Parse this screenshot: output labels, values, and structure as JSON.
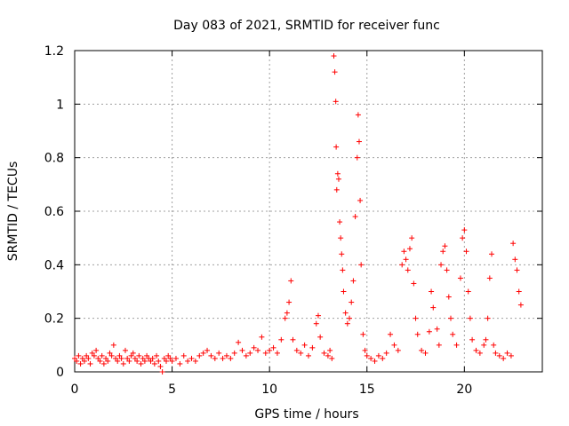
{
  "chart_data": {
    "type": "scatter",
    "title": "Day 083 of 2021, SRMTID for receiver func",
    "xlabel": "GPS time / hours",
    "ylabel": "SRMTID / TECUs",
    "xlim": [
      0,
      24
    ],
    "ylim": [
      0,
      1.2
    ],
    "xticks": [
      0,
      5,
      10,
      15,
      20
    ],
    "xtick_labels": [
      "0",
      "5",
      "10",
      "15",
      "20"
    ],
    "yticks": [
      0,
      0.2,
      0.4,
      0.6,
      0.8,
      1.0,
      1.2
    ],
    "ytick_labels": [
      "0",
      "0.2",
      "0.4",
      "0.6",
      "0.8",
      "1",
      "1.2"
    ],
    "grid": true,
    "marker": "+",
    "color": "#ff0000",
    "series": [
      {
        "name": "SRMTID",
        "points": [
          [
            0.0,
            0.05
          ],
          [
            0.1,
            0.04
          ],
          [
            0.2,
            0.06
          ],
          [
            0.3,
            0.03
          ],
          [
            0.4,
            0.05
          ],
          [
            0.5,
            0.04
          ],
          [
            0.6,
            0.06
          ],
          [
            0.7,
            0.05
          ],
          [
            0.8,
            0.03
          ],
          [
            0.9,
            0.07
          ],
          [
            1.0,
            0.06
          ],
          [
            1.1,
            0.08
          ],
          [
            1.2,
            0.05
          ],
          [
            1.3,
            0.04
          ],
          [
            1.4,
            0.06
          ],
          [
            1.5,
            0.03
          ],
          [
            1.6,
            0.05
          ],
          [
            1.7,
            0.04
          ],
          [
            1.8,
            0.07
          ],
          [
            1.9,
            0.06
          ],
          [
            2.0,
            0.1
          ],
          [
            2.1,
            0.05
          ],
          [
            2.2,
            0.04
          ],
          [
            2.3,
            0.06
          ],
          [
            2.4,
            0.05
          ],
          [
            2.5,
            0.03
          ],
          [
            2.6,
            0.08
          ],
          [
            2.7,
            0.05
          ],
          [
            2.8,
            0.04
          ],
          [
            2.9,
            0.06
          ],
          [
            3.0,
            0.07
          ],
          [
            3.1,
            0.05
          ],
          [
            3.2,
            0.04
          ],
          [
            3.3,
            0.06
          ],
          [
            3.4,
            0.03
          ],
          [
            3.5,
            0.05
          ],
          [
            3.6,
            0.04
          ],
          [
            3.7,
            0.06
          ],
          [
            3.8,
            0.05
          ],
          [
            3.9,
            0.04
          ],
          [
            4.0,
            0.05
          ],
          [
            4.1,
            0.03
          ],
          [
            4.2,
            0.06
          ],
          [
            4.3,
            0.04
          ],
          [
            4.4,
            0.02
          ],
          [
            4.5,
            0.0
          ],
          [
            4.6,
            0.05
          ],
          [
            4.7,
            0.04
          ],
          [
            4.8,
            0.06
          ],
          [
            4.9,
            0.05
          ],
          [
            5.0,
            0.04
          ],
          [
            5.2,
            0.05
          ],
          [
            5.4,
            0.03
          ],
          [
            5.6,
            0.06
          ],
          [
            5.8,
            0.04
          ],
          [
            6.0,
            0.05
          ],
          [
            6.2,
            0.04
          ],
          [
            6.4,
            0.06
          ],
          [
            6.6,
            0.07
          ],
          [
            6.8,
            0.08
          ],
          [
            7.0,
            0.06
          ],
          [
            7.2,
            0.05
          ],
          [
            7.4,
            0.07
          ],
          [
            7.6,
            0.05
          ],
          [
            7.8,
            0.06
          ],
          [
            8.0,
            0.05
          ],
          [
            8.2,
            0.07
          ],
          [
            8.4,
            0.11
          ],
          [
            8.6,
            0.08
          ],
          [
            8.8,
            0.06
          ],
          [
            9.0,
            0.07
          ],
          [
            9.2,
            0.09
          ],
          [
            9.4,
            0.08
          ],
          [
            9.6,
            0.13
          ],
          [
            9.8,
            0.07
          ],
          [
            10.0,
            0.08
          ],
          [
            10.2,
            0.09
          ],
          [
            10.4,
            0.07
          ],
          [
            10.6,
            0.12
          ],
          [
            10.8,
            0.2
          ],
          [
            10.9,
            0.22
          ],
          [
            11.0,
            0.26
          ],
          [
            11.1,
            0.34
          ],
          [
            11.2,
            0.12
          ],
          [
            11.4,
            0.08
          ],
          [
            11.6,
            0.07
          ],
          [
            11.8,
            0.1
          ],
          [
            12.0,
            0.06
          ],
          [
            12.2,
            0.09
          ],
          [
            12.4,
            0.18
          ],
          [
            12.5,
            0.21
          ],
          [
            12.6,
            0.13
          ],
          [
            12.8,
            0.07
          ],
          [
            13.0,
            0.06
          ],
          [
            13.1,
            0.08
          ],
          [
            13.2,
            0.05
          ],
          [
            13.3,
            1.18
          ],
          [
            13.35,
            1.12
          ],
          [
            13.4,
            1.01
          ],
          [
            13.42,
            0.84
          ],
          [
            13.45,
            0.68
          ],
          [
            13.5,
            0.74
          ],
          [
            13.55,
            0.72
          ],
          [
            13.6,
            0.56
          ],
          [
            13.65,
            0.5
          ],
          [
            13.7,
            0.44
          ],
          [
            13.75,
            0.38
          ],
          [
            13.8,
            0.3
          ],
          [
            13.9,
            0.22
          ],
          [
            14.0,
            0.18
          ],
          [
            14.1,
            0.2
          ],
          [
            14.2,
            0.26
          ],
          [
            14.3,
            0.34
          ],
          [
            14.4,
            0.58
          ],
          [
            14.5,
            0.8
          ],
          [
            14.55,
            0.96
          ],
          [
            14.6,
            0.86
          ],
          [
            14.65,
            0.64
          ],
          [
            14.7,
            0.4
          ],
          [
            14.8,
            0.14
          ],
          [
            14.9,
            0.08
          ],
          [
            15.0,
            0.06
          ],
          [
            15.2,
            0.05
          ],
          [
            15.4,
            0.04
          ],
          [
            15.6,
            0.06
          ],
          [
            15.8,
            0.05
          ],
          [
            16.0,
            0.07
          ],
          [
            16.2,
            0.14
          ],
          [
            16.4,
            0.1
          ],
          [
            16.6,
            0.08
          ],
          [
            16.8,
            0.4
          ],
          [
            16.9,
            0.45
          ],
          [
            17.0,
            0.42
          ],
          [
            17.1,
            0.38
          ],
          [
            17.2,
            0.46
          ],
          [
            17.3,
            0.5
          ],
          [
            17.4,
            0.33
          ],
          [
            17.5,
            0.2
          ],
          [
            17.6,
            0.14
          ],
          [
            17.8,
            0.08
          ],
          [
            18.0,
            0.07
          ],
          [
            18.2,
            0.15
          ],
          [
            18.3,
            0.3
          ],
          [
            18.4,
            0.24
          ],
          [
            18.6,
            0.16
          ],
          [
            18.7,
            0.1
          ],
          [
            18.8,
            0.4
          ],
          [
            18.9,
            0.45
          ],
          [
            19.0,
            0.47
          ],
          [
            19.1,
            0.38
          ],
          [
            19.2,
            0.28
          ],
          [
            19.3,
            0.2
          ],
          [
            19.4,
            0.14
          ],
          [
            19.6,
            0.1
          ],
          [
            19.8,
            0.35
          ],
          [
            19.9,
            0.5
          ],
          [
            20.0,
            0.53
          ],
          [
            20.1,
            0.45
          ],
          [
            20.2,
            0.3
          ],
          [
            20.3,
            0.2
          ],
          [
            20.4,
            0.12
          ],
          [
            20.6,
            0.08
          ],
          [
            20.8,
            0.07
          ],
          [
            21.0,
            0.1
          ],
          [
            21.1,
            0.12
          ],
          [
            21.2,
            0.2
          ],
          [
            21.3,
            0.35
          ],
          [
            21.4,
            0.44
          ],
          [
            21.5,
            0.1
          ],
          [
            21.6,
            0.07
          ],
          [
            21.8,
            0.06
          ],
          [
            22.0,
            0.05
          ],
          [
            22.2,
            0.07
          ],
          [
            22.4,
            0.06
          ],
          [
            22.5,
            0.48
          ],
          [
            22.6,
            0.42
          ],
          [
            22.7,
            0.38
          ],
          [
            22.8,
            0.3
          ],
          [
            22.9,
            0.25
          ]
        ]
      }
    ]
  }
}
